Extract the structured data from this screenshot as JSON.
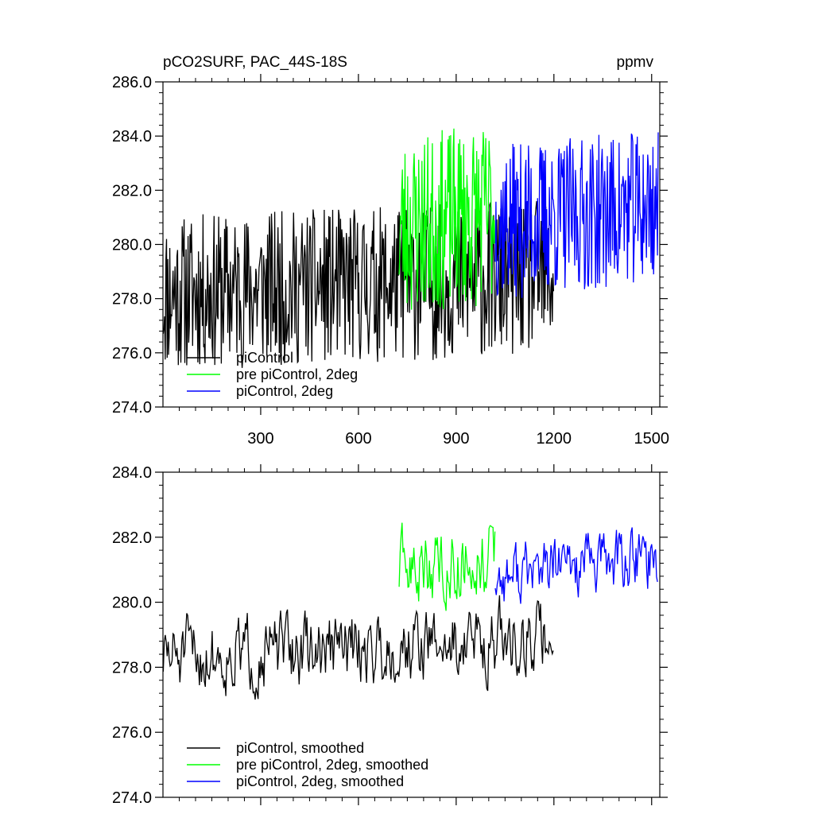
{
  "colors": {
    "black": "#000000",
    "green": "#00ff00",
    "blue": "#0000ff"
  },
  "chart_data": [
    {
      "type": "line",
      "title": "pCO2SURF, PAC_44S-18S",
      "units": "ppmv",
      "xlim": [
        0,
        1525
      ],
      "ylim": [
        274.0,
        286.0
      ],
      "xticks": [
        300,
        600,
        900,
        1200,
        1500
      ],
      "yticks": [
        274.0,
        276.0,
        278.0,
        280.0,
        282.0,
        284.0,
        286.0
      ],
      "ytick_labels": [
        "274.0",
        "276.0",
        "278.0",
        "280.0",
        "282.0",
        "284.0",
        "286.0"
      ],
      "xtick_labels": [
        "300",
        "600",
        "900",
        "1200",
        "1500"
      ],
      "legend_position": "bottom-left",
      "series": [
        {
          "name": "piControl",
          "color": "#000000",
          "x_start": 1,
          "x_end": 1200,
          "mean": 278.2,
          "amplitude": 1.2,
          "seed": 11
        },
        {
          "name": "pre piControl, 2deg",
          "color": "#00ff00",
          "x_start": 725,
          "x_end": 1020,
          "mean": 280.6,
          "amplitude": 1.4,
          "seed": 23
        },
        {
          "name": "piControl, 2deg",
          "color": "#0000ff",
          "x_start": 1020,
          "x_end": 1520,
          "mean": 280.8,
          "amplitude": 1.2,
          "seed": 37
        }
      ]
    },
    {
      "type": "line",
      "title": "",
      "xlim": [
        0,
        1525
      ],
      "ylim": [
        274.0,
        284.0
      ],
      "xticks": [
        300,
        600,
        900,
        1200,
        1500
      ],
      "yticks": [
        274.0,
        276.0,
        278.0,
        280.0,
        282.0,
        284.0
      ],
      "ytick_labels": [
        "274.0",
        "276.0",
        "278.0",
        "280.0",
        "282.0",
        "284.0"
      ],
      "legend_position": "bottom-left",
      "series": [
        {
          "name": "piControl, smoothed",
          "color": "#000000",
          "x_start": 1,
          "x_end": 1200,
          "mean": 278.3,
          "amplitude": 0.9,
          "seed": 51
        },
        {
          "name": "pre piControl, 2deg, smoothed",
          "color": "#00ff00",
          "x_start": 725,
          "x_end": 1020,
          "mean": 280.9,
          "amplitude": 0.9,
          "seed": 63
        },
        {
          "name": "piControl, 2deg, smoothed",
          "color": "#0000ff",
          "x_start": 1020,
          "x_end": 1520,
          "mean": 280.8,
          "amplitude": 0.8,
          "seed": 77
        }
      ]
    }
  ]
}
